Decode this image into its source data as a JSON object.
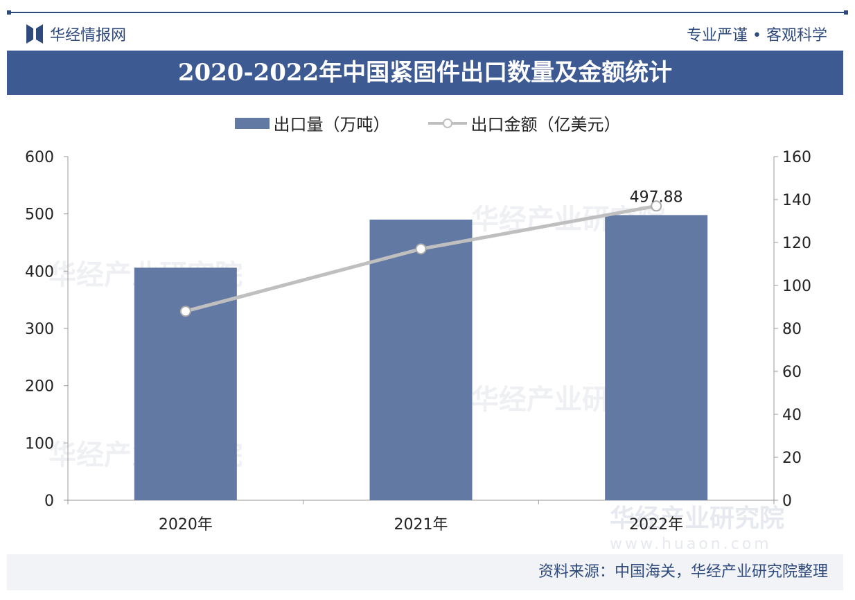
{
  "header": {
    "brand": "华经情报网",
    "slogan": "专业严谨 • 客观科学"
  },
  "footer": {
    "source": "资料来源：中国海关，华经产业研究院整理"
  },
  "watermark": {
    "text": "华经产业研究院",
    "url": "www.huaon.com"
  },
  "colors": {
    "bar": "#6179a3",
    "line": "#bfbfbf",
    "title_bg": "#3d5a93"
  },
  "chart_data": {
    "type": "bar+line",
    "title": "2020-2022年中国紧固件出口数量及金额统计",
    "categories": [
      "2020年",
      "2021年",
      "2022年"
    ],
    "series": [
      {
        "name": "出口量（万吨）",
        "type": "bar",
        "axis": "left",
        "values": [
          406,
          490,
          497.88
        ]
      },
      {
        "name": "出口金额（亿美元）",
        "type": "line",
        "axis": "right",
        "values": [
          88,
          117,
          137
        ]
      }
    ],
    "data_labels": [
      {
        "series": 0,
        "index": 2,
        "text": "497.88"
      }
    ],
    "ylim_left": [
      0,
      600
    ],
    "yticks_left": [
      0,
      100,
      200,
      300,
      400,
      500,
      600
    ],
    "ylim_right": [
      0,
      160
    ],
    "yticks_right": [
      0,
      20,
      40,
      60,
      80,
      100,
      120,
      140,
      160
    ],
    "grid": false,
    "legend": "top"
  }
}
